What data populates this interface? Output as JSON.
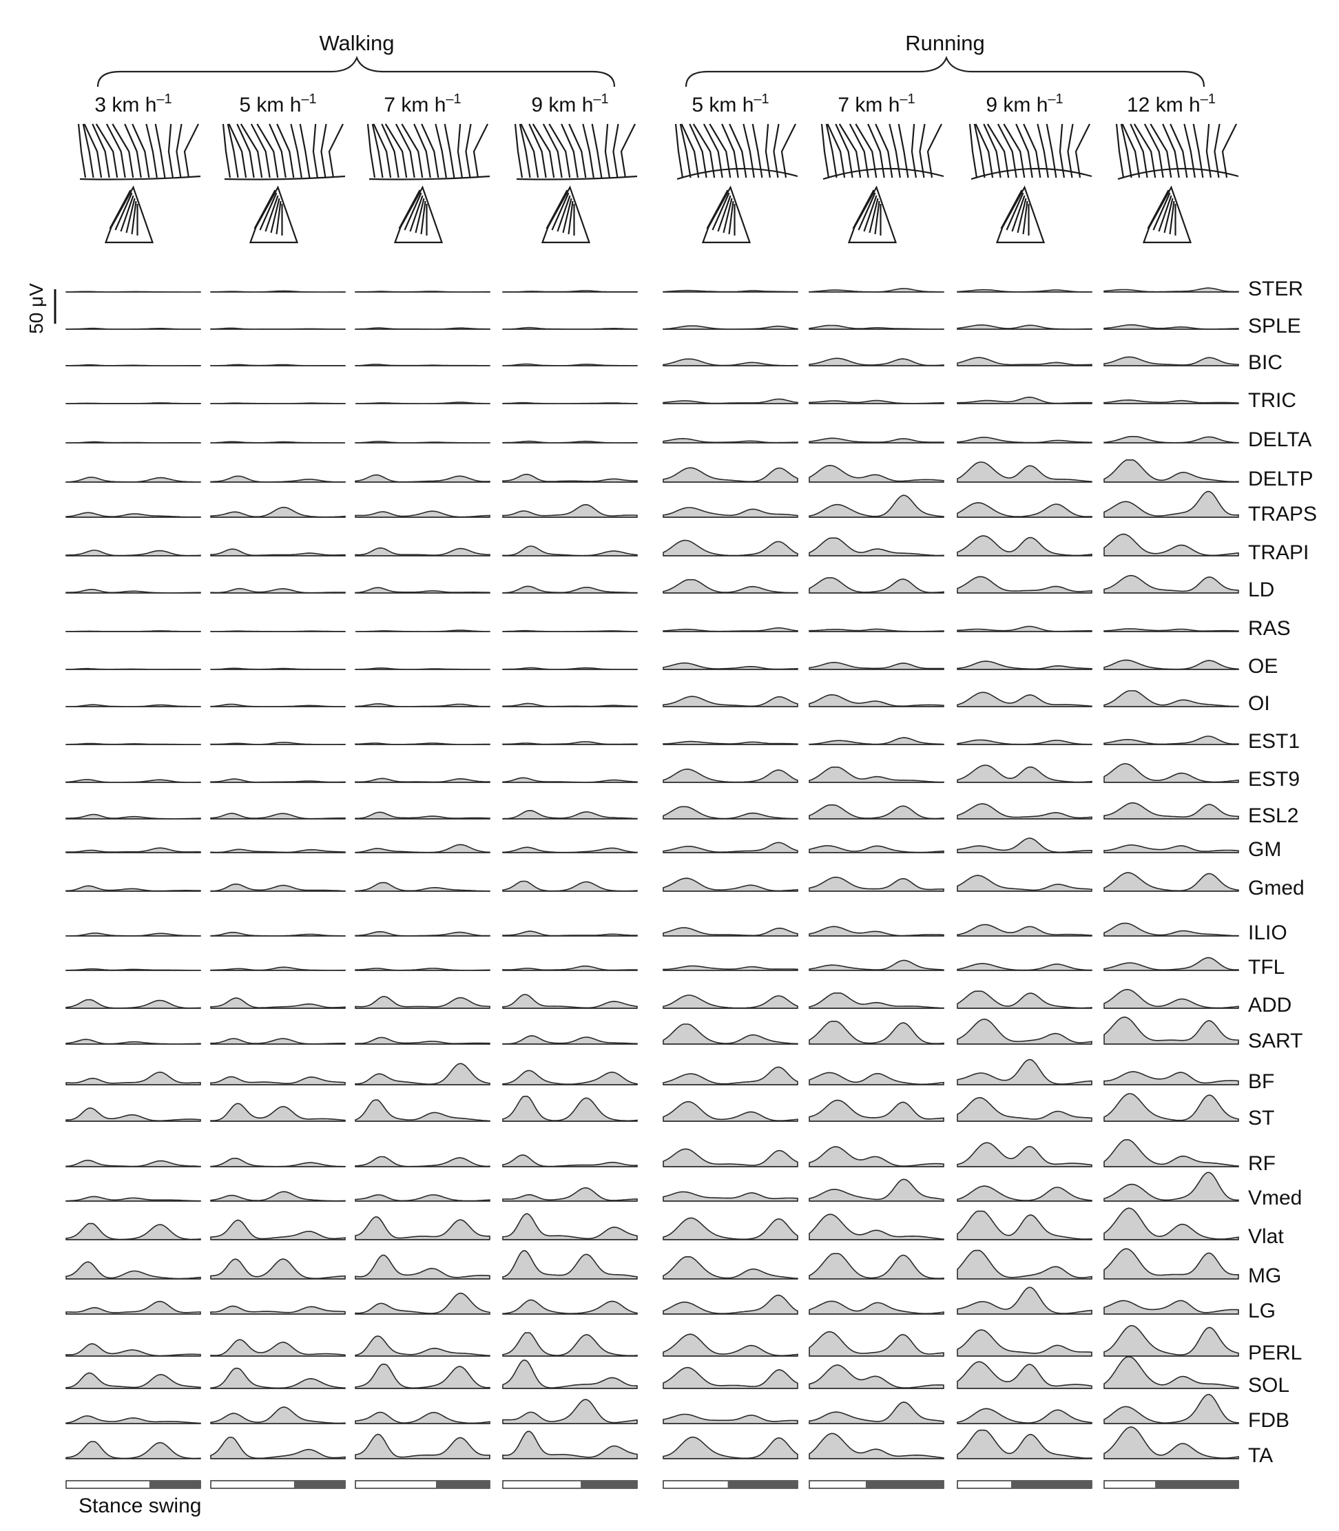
{
  "groups": [
    {
      "label": "Walking",
      "speed_indices": [
        0,
        1,
        2,
        3
      ]
    },
    {
      "label": "Running",
      "speed_indices": [
        4,
        5,
        6,
        7
      ]
    }
  ],
  "speeds": [
    {
      "value": "3",
      "unit": "km h",
      "exp": "–1"
    },
    {
      "value": "5",
      "unit": "km h",
      "exp": "–1"
    },
    {
      "value": "7",
      "unit": "km h",
      "exp": "–1"
    },
    {
      "value": "9",
      "unit": "km h",
      "exp": "–1"
    },
    {
      "value": "5",
      "unit": "km h",
      "exp": "–1"
    },
    {
      "value": "7",
      "unit": "km h",
      "exp": "–1"
    },
    {
      "value": "9",
      "unit": "km h",
      "exp": "–1"
    },
    {
      "value": "12",
      "unit": "km h",
      "exp": "–1"
    }
  ],
  "muscles": [
    "STER",
    "SPLE",
    "BIC",
    "TRIC",
    "DELTA",
    "DELTP",
    "TRAPS",
    "TRAPI",
    "LD",
    "RAS",
    "OE",
    "OI",
    "EST1",
    "EST9",
    "ESL2",
    "GM",
    "Gmed",
    "ILIO",
    "TFL",
    "ADD",
    "SART",
    "BF",
    "ST",
    "RF",
    "Vmed",
    "Vlat",
    "MG",
    "LG",
    "PERL",
    "SOL",
    "FDB",
    "TA"
  ],
  "scale_bar": {
    "label": "50 μV"
  },
  "legend": {
    "label": "Stance swing"
  },
  "colors": {
    "fill": "#cfcfcf",
    "stroke": "#2a2a2a",
    "swing": "#5a5a5a"
  },
  "stance_fraction": [
    0.62,
    0.62,
    0.6,
    0.58,
    0.48,
    0.42,
    0.4,
    0.38
  ],
  "activation": [
    {
      "muscle": "STER",
      "walking": 0.05,
      "running": 0.15
    },
    {
      "muscle": "SPLE",
      "walking": 0.05,
      "running": 0.15
    },
    {
      "muscle": "BIC",
      "walking": 0.05,
      "running": 0.3
    },
    {
      "muscle": "TRIC",
      "walking": 0.05,
      "running": 0.25
    },
    {
      "muscle": "DELTA",
      "walking": 0.05,
      "running": 0.2
    },
    {
      "muscle": "DELTP",
      "walking": 0.25,
      "running": 0.7
    },
    {
      "muscle": "TRAPS",
      "walking": 0.45,
      "running": 0.95
    },
    {
      "muscle": "TRAPI",
      "walking": 0.3,
      "running": 0.7
    },
    {
      "muscle": "LD",
      "walking": 0.2,
      "running": 0.6
    },
    {
      "muscle": "RAS",
      "walking": 0.05,
      "running": 0.2
    },
    {
      "muscle": "OE",
      "walking": 0.05,
      "running": 0.3
    },
    {
      "muscle": "OI",
      "walking": 0.1,
      "running": 0.5
    },
    {
      "muscle": "EST1",
      "walking": 0.1,
      "running": 0.3
    },
    {
      "muscle": "EST9",
      "walking": 0.15,
      "running": 0.6
    },
    {
      "muscle": "ESL2",
      "walking": 0.25,
      "running": 0.55
    },
    {
      "muscle": "GM",
      "walking": 0.3,
      "running": 0.55
    },
    {
      "muscle": "Gmed",
      "walking": 0.3,
      "running": 0.6
    },
    {
      "muscle": "ILIO",
      "walking": 0.15,
      "running": 0.4
    },
    {
      "muscle": "TFL",
      "walking": 0.15,
      "running": 0.45
    },
    {
      "muscle": "ADD",
      "walking": 0.45,
      "running": 0.6
    },
    {
      "muscle": "SART",
      "walking": 0.25,
      "running": 0.9
    },
    {
      "muscle": "BF",
      "walking": 0.8,
      "running": 0.95
    },
    {
      "muscle": "ST",
      "walking": 0.75,
      "running": 0.9
    },
    {
      "muscle": "RF",
      "walking": 0.35,
      "running": 0.85
    },
    {
      "muscle": "Vmed",
      "walking": 0.45,
      "running": 1.0
    },
    {
      "muscle": "Vlat",
      "walking": 0.85,
      "running": 1.0
    },
    {
      "muscle": "MG",
      "walking": 0.9,
      "running": 1.0
    },
    {
      "muscle": "LG",
      "walking": 0.8,
      "running": 1.0
    },
    {
      "muscle": "PERL",
      "walking": 0.7,
      "running": 1.0
    },
    {
      "muscle": "SOL",
      "walking": 0.85,
      "running": 1.0
    },
    {
      "muscle": "FDB",
      "walking": 0.8,
      "running": 1.0
    },
    {
      "muscle": "TA",
      "walking": 0.9,
      "running": 1.0
    }
  ]
}
